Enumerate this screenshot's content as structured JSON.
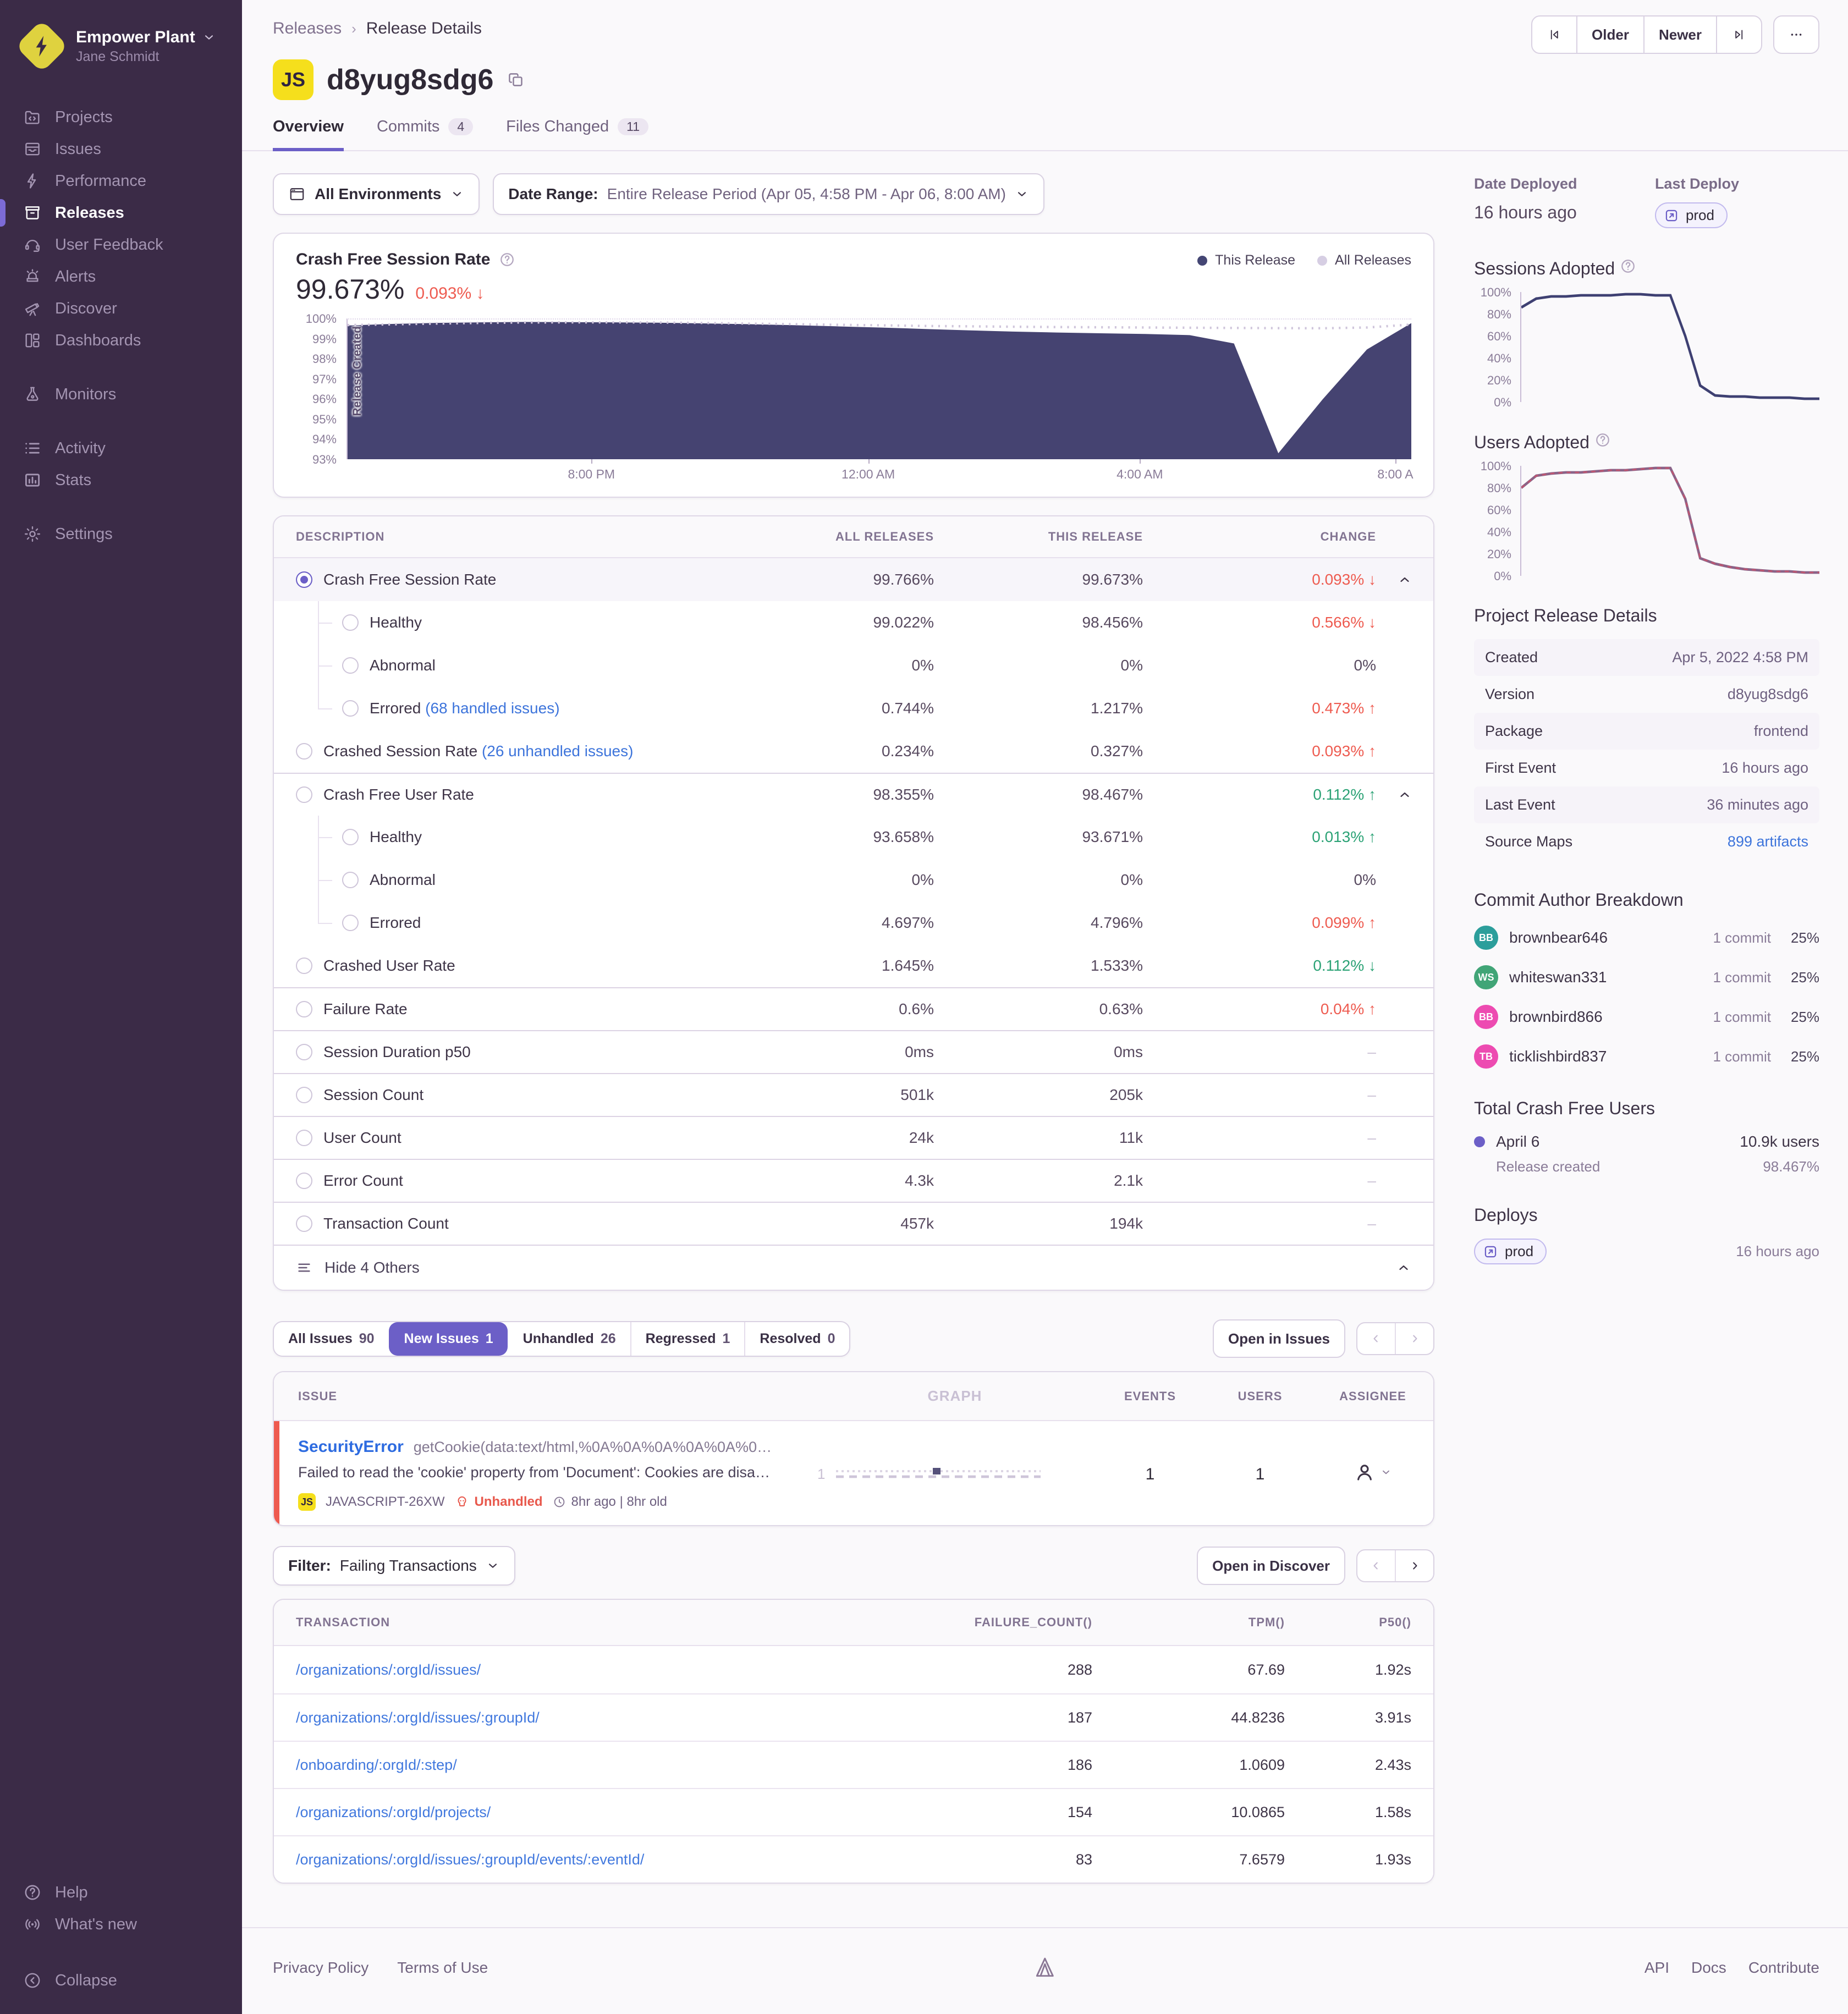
{
  "sidebar": {
    "org_name": "Empower Plant",
    "user_name": "Jane Schmidt",
    "items": [
      {
        "label": "Projects",
        "icon": "folder"
      },
      {
        "label": "Issues",
        "icon": "issues"
      },
      {
        "label": "Performance",
        "icon": "lightning"
      },
      {
        "label": "Releases",
        "icon": "archive",
        "active": true
      },
      {
        "label": "User Feedback",
        "icon": "headset"
      },
      {
        "label": "Alerts",
        "icon": "siren"
      },
      {
        "label": "Discover",
        "icon": "telescope"
      },
      {
        "label": "Dashboards",
        "icon": "grid"
      },
      {
        "label": "Monitors",
        "icon": "flask",
        "section_gap": true
      },
      {
        "label": "Activity",
        "icon": "list",
        "section_gap": true
      },
      {
        "label": "Stats",
        "icon": "bars"
      },
      {
        "label": "Settings",
        "icon": "gear",
        "section_gap": true
      }
    ],
    "footer_items": [
      {
        "label": "Help",
        "icon": "help"
      },
      {
        "label": "What's new",
        "icon": "broadcast"
      },
      {
        "label": "Collapse",
        "icon": "collapse",
        "gap": true
      }
    ]
  },
  "header": {
    "breadcrumb": [
      "Releases",
      "Release Details"
    ],
    "pager": {
      "older": "Older",
      "newer": "Newer"
    },
    "badge": "JS",
    "title": "d8yug8sdg6",
    "tabs": [
      {
        "label": "Overview",
        "active": true
      },
      {
        "label": "Commits",
        "count": "4"
      },
      {
        "label": "Files Changed",
        "count": "11"
      }
    ]
  },
  "filters": {
    "environments": "All Environments",
    "date_label": "Date Range:",
    "date_value": "Entire Release Period (Apr 05, 4:58 PM - Apr 06, 8:00 AM)"
  },
  "crash_chart": {
    "title": "Crash Free Session Rate",
    "value": "99.673%",
    "change": "0.093%",
    "change_dir": "↓",
    "annotation": "Release Created",
    "legend": [
      {
        "label": "This Release",
        "color": "#444674"
      },
      {
        "label": "All Releases",
        "color": "#D6CEE3"
      }
    ]
  },
  "chart_data": [
    {
      "id": "crash-free-sessions",
      "type": "area",
      "title": "Crash Free Session Rate",
      "ylim": [
        93,
        100
      ],
      "yticks": [
        "100%",
        "99%",
        "98%",
        "97%",
        "96%",
        "95%",
        "94%",
        "93%"
      ],
      "xticks": [
        {
          "label": "8:00 PM",
          "pos": 0.23
        },
        {
          "label": "12:00 AM",
          "pos": 0.49
        },
        {
          "label": "4:00 AM",
          "pos": 0.745
        },
        {
          "label": "8:00 A",
          "pos": 0.985
        }
      ],
      "series": [
        {
          "name": "This Release",
          "style": "area",
          "color": "#454371",
          "values": [
            99.7,
            99.78,
            99.83,
            99.86,
            99.88,
            99.87,
            99.86,
            99.84,
            99.81,
            99.77,
            99.72,
            99.66,
            99.6,
            99.53,
            99.46,
            99.4,
            99.35,
            99.31,
            99.28,
            99.22,
            98.8,
            93.3,
            96.0,
            98.5,
            99.82
          ]
        },
        {
          "name": "All Releases",
          "style": "dotted",
          "color": "#CFC5DB",
          "values": [
            99.72,
            99.76,
            99.8,
            99.83,
            99.85,
            99.86,
            99.86,
            99.85,
            99.83,
            99.8,
            99.77,
            99.74,
            99.71,
            99.68,
            99.66,
            99.64,
            99.62,
            99.61,
            99.6,
            99.59,
            99.58,
            99.57,
            99.56,
            99.6,
            99.75
          ]
        }
      ]
    },
    {
      "id": "sessions-adopted",
      "type": "line",
      "title": "Sessions Adopted",
      "ylim": [
        0,
        100
      ],
      "yticks": [
        "100%",
        "80%",
        "60%",
        "40%",
        "20%",
        "0%"
      ],
      "series": [
        {
          "name": "This Release",
          "color": "#3E4072",
          "values": [
            86,
            94,
            96,
            96,
            97,
            97,
            97,
            98,
            98,
            97,
            97,
            60,
            15,
            6,
            5,
            5,
            4,
            4,
            4,
            3,
            3
          ]
        }
      ]
    },
    {
      "id": "users-adopted",
      "type": "line",
      "title": "Users Adopted",
      "ylim": [
        0,
        100
      ],
      "yticks": [
        "100%",
        "80%",
        "60%",
        "40%",
        "20%",
        "0%"
      ],
      "series": [
        {
          "name": "This Release",
          "color": "#8A6388",
          "accent": "#C2556F",
          "values": [
            80,
            91,
            93,
            94,
            94,
            95,
            96,
            96,
            97,
            98,
            98,
            70,
            16,
            11,
            8,
            6,
            5,
            4,
            4,
            3,
            3
          ]
        }
      ]
    }
  ],
  "summary_table": {
    "headers": [
      "DESCRIPTION",
      "ALL RELEASES",
      "THIS RELEASE",
      "CHANGE"
    ],
    "rows": [
      {
        "label": "Crash Free Session Rate",
        "all": "99.766%",
        "this": "99.673%",
        "change": "0.093%",
        "arrow": "↓",
        "tone": "bad",
        "radio": "selected",
        "collapsible": true,
        "highlight": true
      },
      {
        "label": "Healthy",
        "indent": true,
        "all": "99.022%",
        "this": "98.456%",
        "change": "0.566%",
        "arrow": "↓",
        "tone": "bad"
      },
      {
        "label": "Abnormal",
        "indent": true,
        "all": "0%",
        "this": "0%",
        "change": "0%",
        "tone": "neutral"
      },
      {
        "label": "Errored",
        "link": "(68 handled issues)",
        "indent": true,
        "all": "0.744%",
        "this": "1.217%",
        "change": "0.473%",
        "arrow": "↑",
        "tone": "bad"
      },
      {
        "label": "Crashed Session Rate",
        "link": "(26 unhandled issues)",
        "all": "0.234%",
        "this": "0.327%",
        "change": "0.093%",
        "arrow": "↑",
        "tone": "bad"
      },
      {
        "label": "Crash Free User Rate",
        "all": "98.355%",
        "this": "98.467%",
        "change": "0.112%",
        "arrow": "↑",
        "tone": "good",
        "collapsible": true,
        "divider": true
      },
      {
        "label": "Healthy",
        "indent": true,
        "all": "93.658%",
        "this": "93.671%",
        "change": "0.013%",
        "arrow": "↑",
        "tone": "good"
      },
      {
        "label": "Abnormal",
        "indent": true,
        "all": "0%",
        "this": "0%",
        "change": "0%",
        "tone": "neutral"
      },
      {
        "label": "Errored",
        "indent": true,
        "all": "4.697%",
        "this": "4.796%",
        "change": "0.099%",
        "arrow": "↑",
        "tone": "bad"
      },
      {
        "label": "Crashed User Rate",
        "all": "1.645%",
        "this": "1.533%",
        "change": "0.112%",
        "arrow": "↓",
        "tone": "good"
      },
      {
        "label": "Failure Rate",
        "all": "0.6%",
        "this": "0.63%",
        "change": "0.04%",
        "arrow": "↑",
        "tone": "bad",
        "divider": true
      },
      {
        "label": "Session Duration p50",
        "all": "0ms",
        "this": "0ms",
        "change": "–",
        "tone": "muted",
        "divider": true
      },
      {
        "label": "Session Count",
        "all": "501k",
        "this": "205k",
        "change": "–",
        "tone": "muted",
        "divider": true
      },
      {
        "label": "User Count",
        "all": "24k",
        "this": "11k",
        "change": "–",
        "tone": "muted",
        "divider": true
      },
      {
        "label": "Error Count",
        "all": "4.3k",
        "this": "2.1k",
        "change": "–",
        "tone": "muted",
        "divider": true
      },
      {
        "label": "Transaction Count",
        "all": "457k",
        "this": "194k",
        "change": "–",
        "tone": "muted",
        "divider": true
      }
    ],
    "footer_label": "Hide 4 Others"
  },
  "issues": {
    "tabs": [
      {
        "label": "All Issues",
        "count": "90"
      },
      {
        "label": "New Issues",
        "count": "1",
        "active": true
      },
      {
        "label": "Unhandled",
        "count": "26"
      },
      {
        "label": "Regressed",
        "count": "1"
      },
      {
        "label": "Resolved",
        "count": "0"
      }
    ],
    "open_button": "Open in Issues",
    "headers": [
      "ISSUE",
      "GRAPH",
      "EVENTS",
      "USERS",
      "ASSIGNEE"
    ],
    "row": {
      "title": "SecurityError",
      "culprit": "getCookie(data:text/html,%0A%0A%0A%0A%0A%0…",
      "message": "Failed to read the 'cookie' property from 'Document': Cookies are disa…",
      "platform_badge": "JS",
      "short_id": "JAVASCRIPT-26XW",
      "unhandled_label": "Unhandled",
      "age": "8hr ago | 8hr old",
      "graph_label": "1",
      "events": "1",
      "users": "1"
    }
  },
  "transactions": {
    "filter_label": "Filter:",
    "filter_value": "Failing Transactions",
    "open_button": "Open in Discover",
    "headers": [
      "TRANSACTION",
      "FAILURE_COUNT()",
      "TPM()",
      "P50()"
    ],
    "rows": [
      {
        "transaction": "/organizations/:orgId/issues/",
        "failure_count": "288",
        "tpm": "67.69",
        "p50": "1.92s"
      },
      {
        "transaction": "/organizations/:orgId/issues/:groupId/",
        "failure_count": "187",
        "tpm": "44.8236",
        "p50": "3.91s"
      },
      {
        "transaction": "/onboarding/:orgId/:step/",
        "failure_count": "186",
        "tpm": "1.0609",
        "p50": "2.43s"
      },
      {
        "transaction": "/organizations/:orgId/projects/",
        "failure_count": "154",
        "tpm": "10.0865",
        "p50": "1.58s"
      },
      {
        "transaction": "/organizations/:orgId/issues/:groupId/events/:eventId/",
        "failure_count": "83",
        "tpm": "7.6579",
        "p50": "1.93s"
      }
    ]
  },
  "aside": {
    "date_deployed_label": "Date Deployed",
    "date_deployed_value": "16 hours ago",
    "last_deploy_label": "Last Deploy",
    "last_deploy_env": "prod",
    "sessions_adopted_label": "Sessions Adopted",
    "users_adopted_label": "Users Adopted",
    "details": {
      "title": "Project Release Details",
      "rows": [
        {
          "label": "Created",
          "value": "Apr 5, 2022 4:58 PM",
          "striped": true
        },
        {
          "label": "Version",
          "value": "d8yug8sdg6"
        },
        {
          "label": "Package",
          "value": "frontend",
          "striped": true
        },
        {
          "label": "First Event",
          "value": "16 hours ago"
        },
        {
          "label": "Last Event",
          "value": "36 minutes ago",
          "striped": true
        },
        {
          "label": "Source Maps",
          "value": "899 artifacts",
          "link": true
        }
      ]
    },
    "authors": {
      "title": "Commit Author Breakdown",
      "rows": [
        {
          "initials": "BB",
          "name": "brownbear646",
          "commits": "1 commit",
          "share": "25%",
          "color": "#2C9E9B"
        },
        {
          "initials": "WS",
          "name": "whiteswan331",
          "commits": "1 commit",
          "share": "25%",
          "color": "#41A577"
        },
        {
          "initials": "BB",
          "name": "brownbird866",
          "commits": "1 commit",
          "share": "25%",
          "color": "#ED4BB1"
        },
        {
          "initials": "TB",
          "name": "ticklishbird837",
          "commits": "1 commit",
          "share": "25%",
          "color": "#ED4BB1"
        }
      ]
    },
    "crash_free_users": {
      "title": "Total Crash Free Users",
      "date": "April 6",
      "users": "10.9k users",
      "event": "Release created",
      "pct": "98.467%"
    },
    "deploys": {
      "title": "Deploys",
      "env": "prod",
      "time": "16 hours ago"
    }
  },
  "page_footer": {
    "left": [
      "Privacy Policy",
      "Terms of Use"
    ],
    "right": [
      "API",
      "Docs",
      "Contribute"
    ]
  }
}
